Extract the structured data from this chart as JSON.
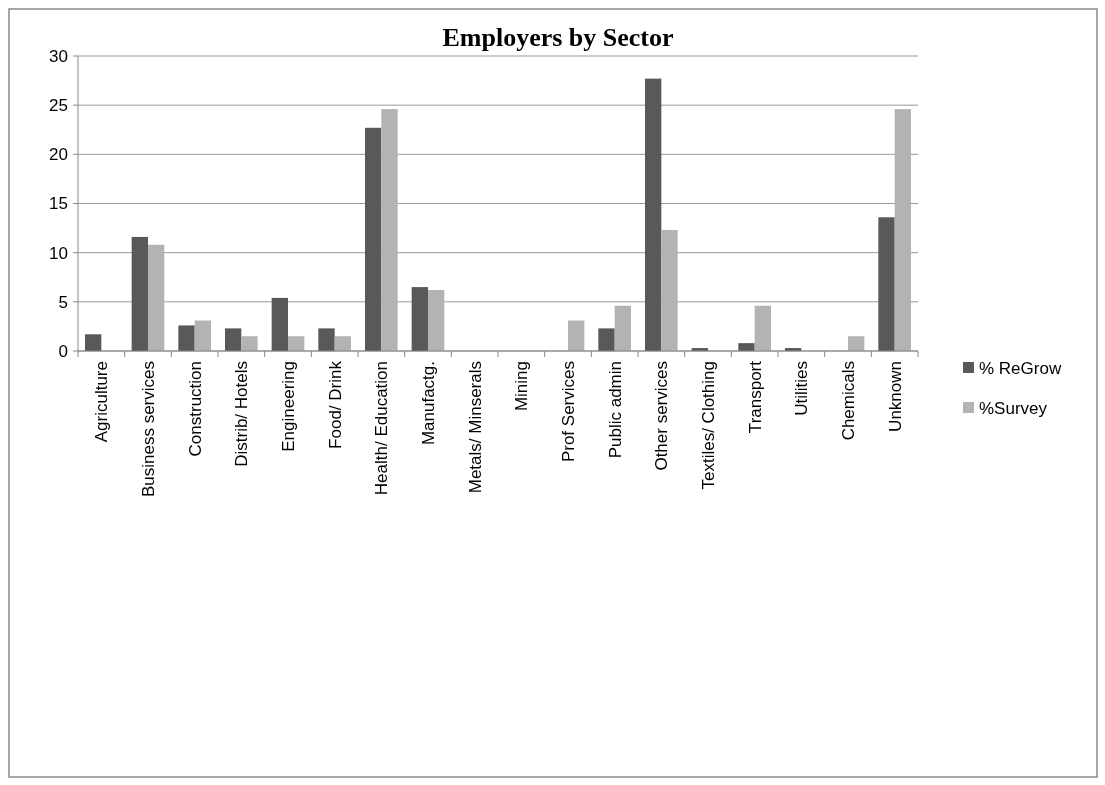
{
  "chart_data": {
    "type": "bar",
    "title": "Employers by Sector",
    "categories": [
      "Agriculture",
      "Business services",
      "Construction",
      "Distrib/ Hotels",
      "Engineering",
      "Food/ Drink",
      "Health/ Education",
      "Manufactg.",
      "Metals/ Minserals",
      "Mining",
      "Prof Services",
      "Public admin",
      "Other services",
      "Textiles/ Clothing",
      "Transport",
      "Utilities",
      "Chemicals",
      "Unknown"
    ],
    "series": [
      {
        "name": "% ReGrow",
        "color": "#595959",
        "values": [
          1.7,
          11.6,
          2.6,
          2.3,
          5.4,
          2.3,
          22.7,
          6.5,
          0,
          0,
          0,
          2.3,
          27.7,
          0.3,
          0.8,
          0.3,
          0,
          13.6
        ]
      },
      {
        "name": "%Survey",
        "color": "#b3b3b3",
        "values": [
          0,
          10.8,
          3.1,
          1.5,
          1.5,
          1.5,
          24.6,
          6.2,
          0,
          0,
          3.1,
          4.6,
          12.3,
          0,
          4.6,
          0,
          1.5,
          24.6
        ]
      }
    ],
    "ylim": [
      0,
      30
    ],
    "yticks": [
      0,
      5,
      10,
      15,
      20,
      25,
      30
    ],
    "grid": "y",
    "legend": "right"
  }
}
